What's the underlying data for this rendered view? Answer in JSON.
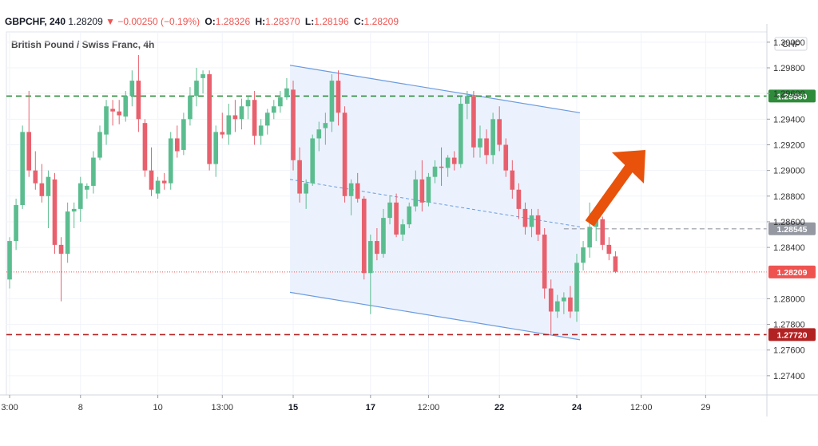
{
  "header": {
    "symbol": "GBPCHF, 240",
    "last": "1.28209",
    "change": "▼ −0.00250 (−0.19%)",
    "o_label": "O:",
    "o_value": "1.28326",
    "h_label": "H:",
    "h_value": "1.28370",
    "l_label": "L:",
    "l_value": "1.28196",
    "c_label": "C:",
    "c_value": "1.28209"
  },
  "colors": {
    "up": "#5bbd8f",
    "down": "#e8606d",
    "channel_line": "#6a9be0",
    "channel_fill": "#eaf1fd",
    "resistance": "#2e8b3a",
    "support": "#b22222",
    "arrow": "#e8520b",
    "price_tag": "#ef5350",
    "grey_tag": "#9598a1"
  },
  "chart_data": {
    "type": "candlestick",
    "title": "British Pound / Swiss Franc, 4h",
    "currency": "CHF",
    "grid": true,
    "y_axis": {
      "range": [
        1.2725,
        1.3008
      ],
      "ticks": [
        "1.30000",
        "1.29800",
        "1.29600",
        "1.29400",
        "1.29200",
        "1.29000",
        "1.28800",
        "1.28600",
        "1.28400",
        "1.28000",
        "1.27800",
        "1.27600",
        "1.27400"
      ]
    },
    "x_axis": {
      "labels": [
        {
          "text": "3:00",
          "bar": 0
        },
        {
          "text": "8",
          "bar": 11
        },
        {
          "text": "10",
          "bar": 23
        },
        {
          "text": "13:00",
          "bar": 33
        },
        {
          "text": "15",
          "bar": 44
        },
        {
          "text": "17",
          "bar": 56
        },
        {
          "text": "12:00",
          "bar": 65
        },
        {
          "text": "22",
          "bar": 76
        },
        {
          "text": "24",
          "bar": 88
        },
        {
          "text": "12:00",
          "bar": 98
        },
        {
          "text": "29",
          "bar": 108
        }
      ],
      "bold_labels": [
        "15",
        "17",
        "22",
        "24"
      ]
    },
    "total_bar_slots": 118,
    "candles": [
      [
        1.2815,
        1.2848,
        1.2808,
        1.2845
      ],
      [
        1.2845,
        1.2878,
        1.2838,
        1.2873
      ],
      [
        1.2873,
        1.2935,
        1.287,
        1.293
      ],
      [
        1.293,
        1.2962,
        1.2895,
        1.29
      ],
      [
        1.29,
        1.2915,
        1.2885,
        1.289
      ],
      [
        1.289,
        1.2905,
        1.2875,
        1.288
      ],
      [
        1.288,
        1.29,
        1.2855,
        1.2895
      ],
      [
        1.2893,
        1.2898,
        1.2835,
        1.2842
      ],
      [
        1.2842,
        1.2848,
        1.2798,
        1.2835
      ],
      [
        1.2835,
        1.2875,
        1.2828,
        1.2868
      ],
      [
        1.2868,
        1.2875,
        1.2855,
        1.287
      ],
      [
        1.287,
        1.2895,
        1.286,
        1.289
      ],
      [
        1.2885,
        1.289,
        1.2878,
        1.2888
      ],
      [
        1.2888,
        1.2915,
        1.2882,
        1.291
      ],
      [
        1.291,
        1.2935,
        1.2908,
        1.293
      ],
      [
        1.2928,
        1.2955,
        1.292,
        1.295
      ],
      [
        1.2948,
        1.2955,
        1.2935,
        1.2946
      ],
      [
        1.2946,
        1.2955,
        1.2936,
        1.2943
      ],
      [
        1.2942,
        1.2962,
        1.2938,
        1.2958
      ],
      [
        1.2958,
        1.2978,
        1.295,
        1.297
      ],
      [
        1.297,
        1.299,
        1.293,
        1.294
      ],
      [
        1.2937,
        1.294,
        1.2895,
        1.29
      ],
      [
        1.29,
        1.2918,
        1.288,
        1.2885
      ],
      [
        1.2882,
        1.2895,
        1.2878,
        1.2892
      ],
      [
        1.2892,
        1.2898,
        1.2885,
        1.289
      ],
      [
        1.289,
        1.293,
        1.2885,
        1.2925
      ],
      [
        1.2925,
        1.2935,
        1.291,
        1.2915
      ],
      [
        1.2916,
        1.2945,
        1.2912,
        1.294
      ],
      [
        1.294,
        1.2965,
        1.2935,
        1.2958
      ],
      [
        1.2958,
        1.298,
        1.295,
        1.297
      ],
      [
        1.2972,
        1.2978,
        1.296,
        1.2975
      ],
      [
        1.2975,
        1.2978,
        1.29,
        1.2905
      ],
      [
        1.2905,
        1.2935,
        1.2895,
        1.293
      ],
      [
        1.293,
        1.2945,
        1.2925,
        1.2928
      ],
      [
        1.2928,
        1.2952,
        1.292,
        1.2943
      ],
      [
        1.2943,
        1.2955,
        1.293,
        1.294
      ],
      [
        1.294,
        1.2956,
        1.2932,
        1.295
      ],
      [
        1.295,
        1.2958,
        1.294,
        1.2955
      ],
      [
        1.2955,
        1.2962,
        1.292,
        1.2927
      ],
      [
        1.2927,
        1.294,
        1.292,
        1.2935
      ],
      [
        1.2935,
        1.2948,
        1.2928,
        1.2945
      ],
      [
        1.2945,
        1.2955,
        1.294,
        1.295
      ],
      [
        1.295,
        1.2962,
        1.2945,
        1.2957
      ],
      [
        1.2957,
        1.2972,
        1.2955,
        1.2964
      ],
      [
        1.2963,
        1.297,
        1.29,
        1.2908
      ],
      [
        1.2908,
        1.2918,
        1.2875,
        1.2882
      ],
      [
        1.2882,
        1.2893,
        1.287,
        1.289
      ],
      [
        1.289,
        1.2928,
        1.2888,
        1.2925
      ],
      [
        1.2925,
        1.2938,
        1.2915,
        1.2932
      ],
      [
        1.2933,
        1.2945,
        1.292,
        1.2937
      ],
      [
        1.2938,
        1.2975,
        1.293,
        1.297
      ],
      [
        1.297,
        1.2978,
        1.2935,
        1.2945
      ],
      [
        1.2945,
        1.295,
        1.2875,
        1.288
      ],
      [
        1.288,
        1.2893,
        1.2865,
        1.289
      ],
      [
        1.289,
        1.2898,
        1.2875,
        1.2878
      ],
      [
        1.2878,
        1.288,
        1.2815,
        1.282
      ],
      [
        1.282,
        1.285,
        1.2788,
        1.2845
      ],
      [
        1.2845,
        1.2855,
        1.283,
        1.2835
      ],
      [
        1.2835,
        1.287,
        1.2832,
        1.2863
      ],
      [
        1.2863,
        1.288,
        1.2858,
        1.2875
      ],
      [
        1.2875,
        1.2882,
        1.2848,
        1.285
      ],
      [
        1.285,
        1.2862,
        1.2845,
        1.2858
      ],
      [
        1.2858,
        1.2875,
        1.2855,
        1.2872
      ],
      [
        1.2872,
        1.29,
        1.2868,
        1.2893
      ],
      [
        1.2893,
        1.2908,
        1.2868,
        1.2875
      ],
      [
        1.2875,
        1.2898,
        1.2872,
        1.2895
      ],
      [
        1.2895,
        1.2908,
        1.289,
        1.2903
      ],
      [
        1.2903,
        1.2918,
        1.2888,
        1.2902
      ],
      [
        1.2902,
        1.2912,
        1.2895,
        1.291
      ],
      [
        1.291,
        1.2915,
        1.29,
        1.2905
      ],
      [
        1.2905,
        1.2958,
        1.2902,
        1.2952
      ],
      [
        1.2952,
        1.2962,
        1.294,
        1.2958
      ],
      [
        1.2958,
        1.2962,
        1.291,
        1.2918
      ],
      [
        1.2918,
        1.2935,
        1.291,
        1.2925
      ],
      [
        1.2925,
        1.2932,
        1.2905,
        1.2912
      ],
      [
        1.2912,
        1.2945,
        1.2905,
        1.294
      ],
      [
        1.294,
        1.295,
        1.2915,
        1.292
      ],
      [
        1.292,
        1.2925,
        1.2895,
        1.29
      ],
      [
        1.29,
        1.2908,
        1.2878,
        1.2885
      ],
      [
        1.2885,
        1.289,
        1.2862,
        1.287
      ],
      [
        1.287,
        1.2875,
        1.285,
        1.2856
      ],
      [
        1.2856,
        1.287,
        1.2848,
        1.2865
      ],
      [
        1.2865,
        1.287,
        1.2845,
        1.285
      ],
      [
        1.285,
        1.2855,
        1.28,
        1.2808
      ],
      [
        1.2808,
        1.2815,
        1.2772,
        1.279
      ],
      [
        1.279,
        1.2803,
        1.2785,
        1.2798
      ],
      [
        1.2798,
        1.2805,
        1.2788,
        1.2801
      ],
      [
        1.2801,
        1.281,
        1.2785,
        1.279
      ],
      [
        1.279,
        1.2835,
        1.2782,
        1.2828
      ],
      [
        1.2828,
        1.2845,
        1.2822,
        1.284
      ],
      [
        1.284,
        1.2875,
        1.2832,
        1.2856
      ],
      [
        1.2856,
        1.2866,
        1.2845,
        1.2862
      ],
      [
        1.2862,
        1.2864,
        1.2838,
        1.2842
      ],
      [
        1.2842,
        1.2848,
        1.283,
        1.2835
      ],
      [
        1.2833,
        1.2837,
        1.282,
        1.2821
      ]
    ],
    "horizontal_lines": [
      {
        "value": 1.2958,
        "label": "1.29580",
        "style": "dashed",
        "color": "#2e8b3a"
      },
      {
        "value": 1.2772,
        "label": "1.27720",
        "style": "dashed",
        "color": "#b22222"
      },
      {
        "value": 1.28545,
        "label": "1.28545",
        "style": "dashed",
        "color": "#9598a1"
      },
      {
        "value": 1.28209,
        "label": "1.28209",
        "style": "dotted",
        "color": "#ef5350"
      }
    ],
    "channel": {
      "upper": [
        [
          1.2982
        ],
        [
          1.2945
        ]
      ],
      "lower": [
        [
          1.2805
        ],
        [
          1.2768
        ]
      ],
      "middle": [
        [
          1.2893
        ],
        [
          1.2856
        ]
      ]
    },
    "annotation": "orange arrow pointing up-right"
  }
}
